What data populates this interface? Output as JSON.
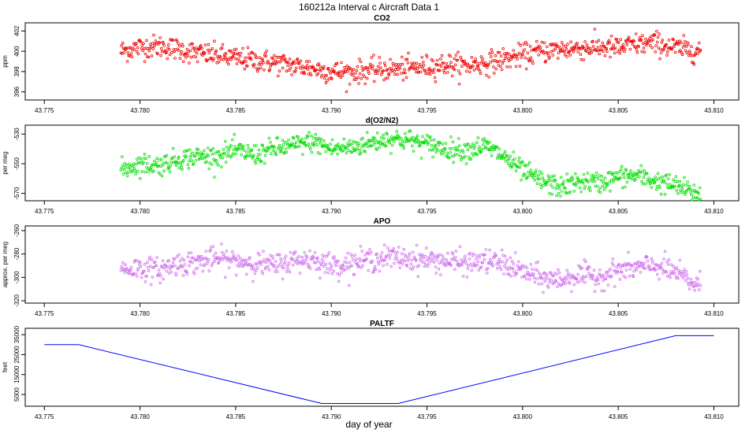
{
  "title": "160212a   Interval c Aircraft Data 1",
  "shared_xlabel": "day of year",
  "colors": {
    "co2": "#ee0000",
    "o2n2": "#00dd00",
    "apo": "#d070ee",
    "paltf": "#0000ff",
    "frame": "#000000"
  },
  "chart_data": [
    {
      "type": "scatter",
      "title": "CO2",
      "ylabel": "ppm",
      "xlim": [
        43.774,
        43.8113
      ],
      "ylim": [
        395.2,
        402.8
      ],
      "xticks": [
        43.775,
        43.78,
        43.785,
        43.79,
        43.795,
        43.8,
        43.805,
        43.81
      ],
      "xtick_labels": [
        "43.775",
        "43.780",
        "43.785",
        "43.790",
        "43.795",
        "43.800",
        "43.805",
        "43.810"
      ],
      "yticks": [
        396,
        398,
        400,
        402
      ],
      "ytick_labels": [
        "396",
        "398",
        "400",
        "402"
      ],
      "x_range_data": [
        43.779,
        43.8093
      ],
      "series": [
        {
          "x": [
            43.779,
            43.78,
            43.781,
            43.782,
            43.783,
            43.784,
            43.785,
            43.786,
            43.787,
            43.788,
            43.789,
            43.79,
            43.791,
            43.792,
            43.793,
            43.794,
            43.795,
            43.796,
            43.797,
            43.798,
            43.799,
            43.8,
            43.801,
            43.802,
            43.803,
            43.804,
            43.805,
            43.806,
            43.807,
            43.808,
            43.809
          ],
          "y": [
            400.0,
            400.4,
            400.5,
            400.2,
            399.8,
            399.6,
            399.3,
            399.1,
            398.9,
            398.6,
            398.3,
            398.0,
            397.9,
            398.1,
            398.2,
            398.3,
            398.5,
            398.7,
            398.6,
            398.8,
            399.2,
            399.6,
            400.0,
            400.2,
            400.3,
            400.4,
            400.3,
            400.7,
            400.8,
            400.3,
            400.1
          ],
          "spread": 0.55
        }
      ]
    },
    {
      "type": "scatter",
      "title": "d(O2/N2)",
      "ylabel": "per meg",
      "xlim": [
        43.774,
        43.8113
      ],
      "ylim": [
        -575,
        -524
      ],
      "xticks": [
        43.775,
        43.78,
        43.785,
        43.79,
        43.795,
        43.8,
        43.805,
        43.81
      ],
      "xtick_labels": [
        "43.775",
        "43.780",
        "43.785",
        "43.790",
        "43.795",
        "43.800",
        "43.805",
        "43.810"
      ],
      "yticks": [
        -570,
        -550,
        -530
      ],
      "ytick_labels": [
        "-570",
        "-550",
        "-530"
      ],
      "x_range_data": [
        43.779,
        43.8093
      ],
      "series": [
        {
          "x": [
            43.779,
            43.78,
            43.781,
            43.782,
            43.783,
            43.784,
            43.785,
            43.786,
            43.787,
            43.788,
            43.789,
            43.79,
            43.791,
            43.792,
            43.793,
            43.794,
            43.795,
            43.796,
            43.797,
            43.798,
            43.799,
            43.8,
            43.801,
            43.802,
            43.803,
            43.804,
            43.805,
            43.806,
            43.807,
            43.808,
            43.809
          ],
          "y": [
            -554,
            -550,
            -551,
            -547,
            -545,
            -545,
            -541,
            -544,
            -540,
            -538,
            -535,
            -540,
            -539,
            -536,
            -533,
            -534,
            -537,
            -540,
            -541,
            -538,
            -545,
            -555,
            -562,
            -566,
            -562,
            -563,
            -559,
            -558,
            -562,
            -565,
            -570
          ],
          "spread": 3.5
        }
      ]
    },
    {
      "type": "scatter",
      "title": "APO",
      "ylabel": "approx. per meg",
      "xlim": [
        43.774,
        43.8113
      ],
      "ylim": [
        -322,
        -256
      ],
      "xticks": [
        43.775,
        43.78,
        43.785,
        43.79,
        43.795,
        43.8,
        43.805,
        43.81
      ],
      "xtick_labels": [
        "43.775",
        "43.780",
        "43.785",
        "43.790",
        "43.795",
        "43.800",
        "43.805",
        "43.810"
      ],
      "yticks": [
        -320,
        -300,
        -280,
        -260
      ],
      "ytick_labels": [
        "-320",
        "-300",
        "-280",
        "-260"
      ],
      "x_range_data": [
        43.779,
        43.8093
      ],
      "series": [
        {
          "x": [
            43.779,
            43.78,
            43.781,
            43.782,
            43.783,
            43.784,
            43.785,
            43.786,
            43.787,
            43.788,
            43.789,
            43.79,
            43.791,
            43.792,
            43.793,
            43.794,
            43.795,
            43.796,
            43.797,
            43.798,
            43.799,
            43.8,
            43.801,
            43.802,
            43.803,
            43.804,
            43.805,
            43.806,
            43.807,
            43.808,
            43.809
          ],
          "y": [
            -293,
            -292,
            -294,
            -288,
            -287,
            -284,
            -286,
            -288,
            -290,
            -286,
            -284,
            -290,
            -288,
            -285,
            -283,
            -284,
            -285,
            -286,
            -288,
            -286,
            -288,
            -295,
            -301,
            -302,
            -298,
            -300,
            -294,
            -292,
            -290,
            -296,
            -306
          ],
          "spread": 5
        }
      ]
    },
    {
      "type": "line",
      "title": "PALTF",
      "ylabel": "feet",
      "xlim": [
        43.774,
        43.8113
      ],
      "ylim": [
        -900,
        38200
      ],
      "xticks": [
        43.775,
        43.78,
        43.785,
        43.79,
        43.795,
        43.8,
        43.805,
        43.81
      ],
      "xtick_labels": [
        "43.775",
        "43.780",
        "43.785",
        "43.790",
        "43.795",
        "43.800",
        "43.805",
        "43.810"
      ],
      "yticks": [
        5000,
        15000,
        25000,
        35000
      ],
      "ytick_labels": [
        "5000",
        "15000",
        "25000",
        "35000"
      ],
      "series": [
        {
          "x": [
            43.775,
            43.7768,
            43.7895,
            43.7935,
            43.808,
            43.81
          ],
          "y": [
            30000,
            30000,
            500,
            500,
            34500,
            34500
          ]
        }
      ]
    }
  ]
}
